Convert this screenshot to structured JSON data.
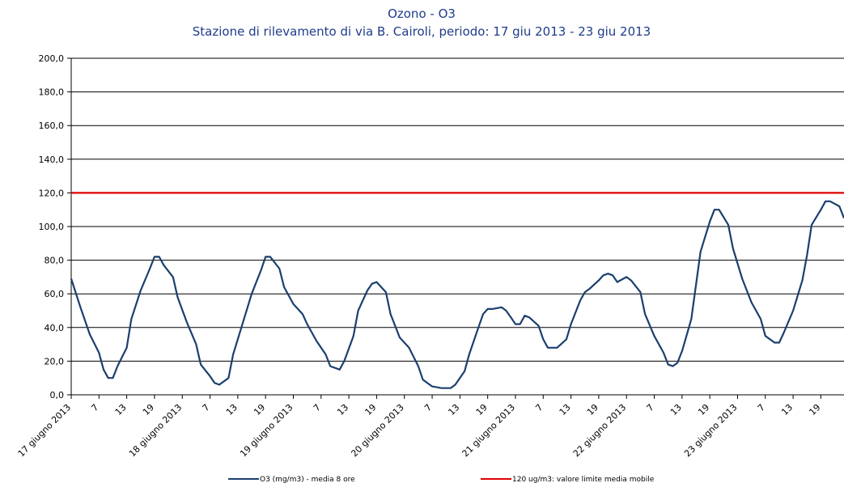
{
  "chart_data": {
    "type": "line",
    "title": "Ozono - O3",
    "subtitle": "Stazione di rilevamento di via B. Cairoli, periodo: 17 giu 2013 - 23 giu 2013",
    "xlim": [
      0,
      167
    ],
    "ylim": [
      0,
      200
    ],
    "yticks": [
      {
        "value": 0,
        "label": "0,0"
      },
      {
        "value": 20,
        "label": "20,0"
      },
      {
        "value": 40,
        "label": "40,0"
      },
      {
        "value": 60,
        "label": "60,0"
      },
      {
        "value": 80,
        "label": "80,0"
      },
      {
        "value": 100,
        "label": "100,0"
      },
      {
        "value": 120,
        "label": "120,0"
      },
      {
        "value": 140,
        "label": "140,0"
      },
      {
        "value": 160,
        "label": "160,0"
      },
      {
        "value": 180,
        "label": "180,0"
      },
      {
        "value": 200,
        "label": "200,0"
      }
    ],
    "xticks": [
      {
        "value": 0,
        "label": "17 giugno 2013"
      },
      {
        "value": 6,
        "label": "7"
      },
      {
        "value": 12,
        "label": "13"
      },
      {
        "value": 18,
        "label": "19"
      },
      {
        "value": 24,
        "label": "18 giugno 2013"
      },
      {
        "value": 30,
        "label": "7"
      },
      {
        "value": 36,
        "label": "13"
      },
      {
        "value": 42,
        "label": "19"
      },
      {
        "value": 48,
        "label": "19 giugno 2013"
      },
      {
        "value": 54,
        "label": "7"
      },
      {
        "value": 60,
        "label": "13"
      },
      {
        "value": 66,
        "label": "19"
      },
      {
        "value": 72,
        "label": "20 giugno 2013"
      },
      {
        "value": 78,
        "label": "7"
      },
      {
        "value": 84,
        "label": "13"
      },
      {
        "value": 90,
        "label": "19"
      },
      {
        "value": 96,
        "label": "21 giugno 2013"
      },
      {
        "value": 102,
        "label": "7"
      },
      {
        "value": 108,
        "label": "13"
      },
      {
        "value": 114,
        "label": "19"
      },
      {
        "value": 120,
        "label": "22 giugno 2013"
      },
      {
        "value": 126,
        "label": "7"
      },
      {
        "value": 132,
        "label": "13"
      },
      {
        "value": 138,
        "label": "19"
      },
      {
        "value": 144,
        "label": "23 giugno 2013"
      },
      {
        "value": 150,
        "label": "7"
      },
      {
        "value": 156,
        "label": "13"
      },
      {
        "value": 162,
        "label": "19"
      }
    ],
    "grid": true,
    "series": [
      {
        "name": "O3 (mg/m3) - media 8 ore",
        "color": "#1b3f6e",
        "x": [
          0,
          2,
          4,
          6,
          7,
          8,
          9,
          10,
          12,
          13,
          15,
          17,
          18,
          19,
          20,
          22,
          23,
          25,
          27,
          28,
          30,
          31,
          32,
          34,
          35,
          37,
          39,
          41,
          42,
          43,
          45,
          46,
          48,
          50,
          51,
          53,
          55,
          56,
          58,
          59,
          61,
          62,
          64,
          65,
          66,
          68,
          69,
          71,
          73,
          75,
          76,
          78,
          80,
          82,
          83,
          85,
          86,
          88,
          89,
          90,
          91,
          93,
          94,
          95,
          96,
          97,
          98,
          99,
          101,
          102,
          103,
          105,
          107,
          108,
          110,
          111,
          112,
          114,
          115,
          116,
          117,
          118,
          120,
          121,
          123,
          124,
          126,
          128,
          129,
          130,
          131,
          132,
          134,
          135,
          136,
          138,
          139,
          140,
          142,
          143,
          145,
          147,
          149,
          150,
          152,
          153,
          154,
          156,
          158,
          159,
          160,
          162,
          163,
          164,
          166,
          167
        ],
        "values": [
          69,
          52,
          36,
          25,
          15,
          10,
          10,
          17,
          28,
          45,
          62,
          75,
          82,
          82,
          77,
          70,
          58,
          43,
          30,
          18,
          11,
          7,
          6,
          10,
          24,
          42,
          60,
          74,
          82,
          82,
          75,
          64,
          54,
          48,
          42,
          32,
          24,
          17,
          15,
          20,
          35,
          50,
          62,
          66,
          67,
          61,
          48,
          34,
          28,
          17,
          9,
          5,
          4,
          4,
          6,
          14,
          24,
          40,
          48,
          51,
          51,
          52,
          50,
          46,
          42,
          42,
          47,
          46,
          41,
          33,
          28,
          28,
          33,
          42,
          56,
          61,
          63,
          68,
          71,
          72,
          71,
          67,
          70,
          68,
          61,
          48,
          35,
          25,
          18,
          17,
          19,
          26,
          45,
          65,
          85,
          103,
          110,
          110,
          101,
          87,
          69,
          55,
          45,
          35,
          31,
          31,
          37,
          50,
          68,
          83,
          101,
          110,
          115,
          115,
          112,
          105
        ]
      },
      {
        "name": "120 ug/m3: valore limite media mobile",
        "color": "#e00000",
        "x": [
          0,
          167
        ],
        "values": [
          120,
          120
        ]
      }
    ]
  }
}
